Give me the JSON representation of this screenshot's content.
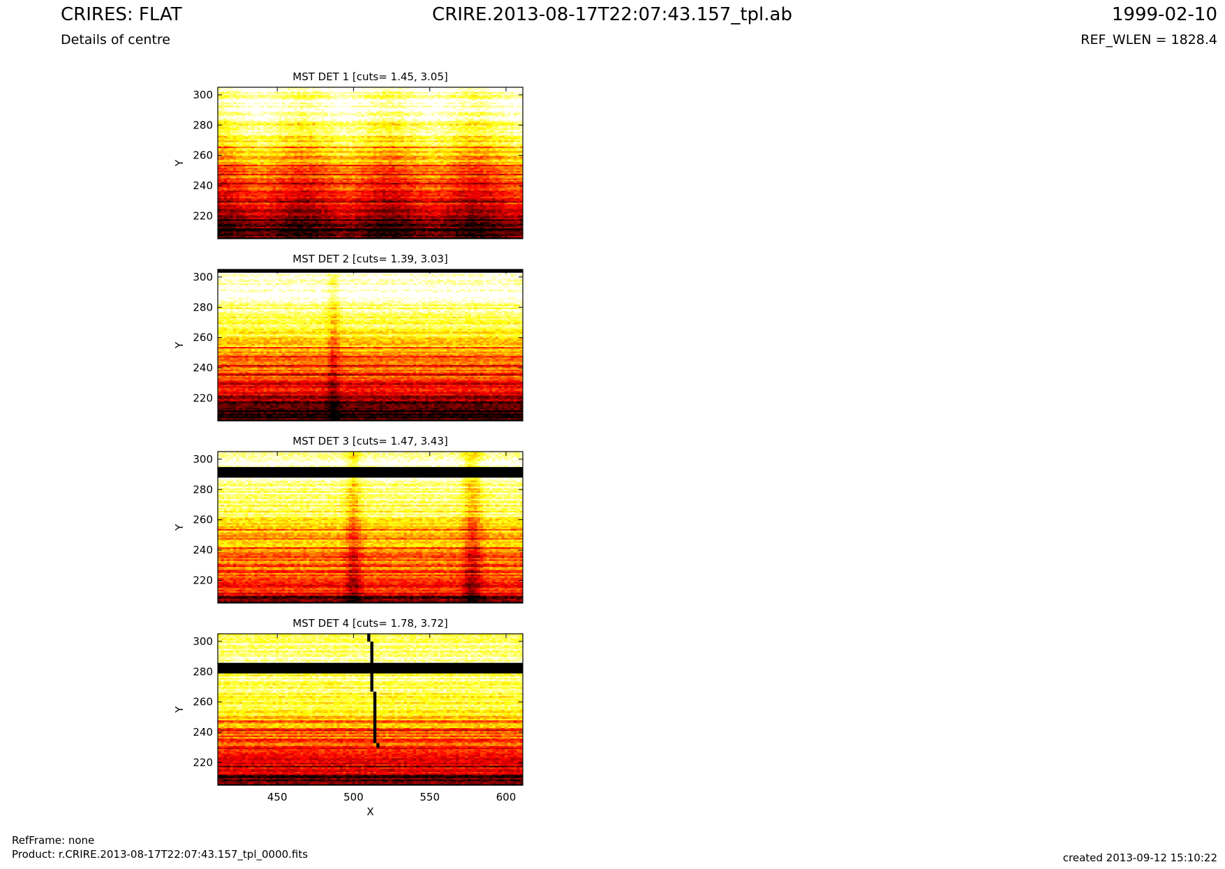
{
  "header": {
    "title_left": "CRIRES: FLAT",
    "subtitle_left": "Details of centre",
    "title_center": "CRIRE.2013-08-17T22:07:43.157_tpl.ab",
    "title_right": "1999-02-10",
    "subtitle_right": "REF_WLEN = 1828.4"
  },
  "footer": {
    "refframe": "RefFrame: none",
    "product": "Product: r.CRIRE.2013-08-17T22:07:43.157_tpl_0000.fits",
    "created": "created 2013-09-12 15:10:22"
  },
  "chart_data": [
    {
      "type": "heatmap",
      "title": "MST DET 1 [cuts= 1.45, 3.05]",
      "xlabel": "",
      "ylabel": "Y",
      "xlim": [
        411,
        611
      ],
      "ylim": [
        205,
        305
      ],
      "xticks": [
        450,
        500,
        550,
        600
      ],
      "yticks": [
        220,
        240,
        260,
        280,
        300
      ],
      "colormap": "hot",
      "cuts": [
        1.45,
        3.05
      ]
    },
    {
      "type": "heatmap",
      "title": "MST DET 2 [cuts= 1.39, 3.03]",
      "xlabel": "",
      "ylabel": "Y",
      "xlim": [
        411,
        611
      ],
      "ylim": [
        205,
        305
      ],
      "xticks": [
        450,
        500,
        550,
        600
      ],
      "yticks": [
        220,
        240,
        260,
        280,
        300
      ],
      "colormap": "hot",
      "cuts": [
        1.39,
        3.03
      ]
    },
    {
      "type": "heatmap",
      "title": "MST DET 3 [cuts= 1.47, 3.43]",
      "xlabel": "",
      "ylabel": "Y",
      "xlim": [
        411,
        611
      ],
      "ylim": [
        205,
        305
      ],
      "xticks": [
        450,
        500,
        550,
        600
      ],
      "yticks": [
        220,
        240,
        260,
        280,
        300
      ],
      "colormap": "hot",
      "cuts": [
        1.47,
        3.43
      ]
    },
    {
      "type": "heatmap",
      "title": "MST DET 4 [cuts= 1.78, 3.72]",
      "xlabel": "X",
      "ylabel": "Y",
      "xlim": [
        411,
        611
      ],
      "ylim": [
        205,
        305
      ],
      "xticks": [
        450,
        500,
        550,
        600
      ],
      "yticks": [
        220,
        240,
        260,
        280,
        300
      ],
      "colormap": "hot",
      "cuts": [
        1.78,
        3.72
      ]
    }
  ]
}
